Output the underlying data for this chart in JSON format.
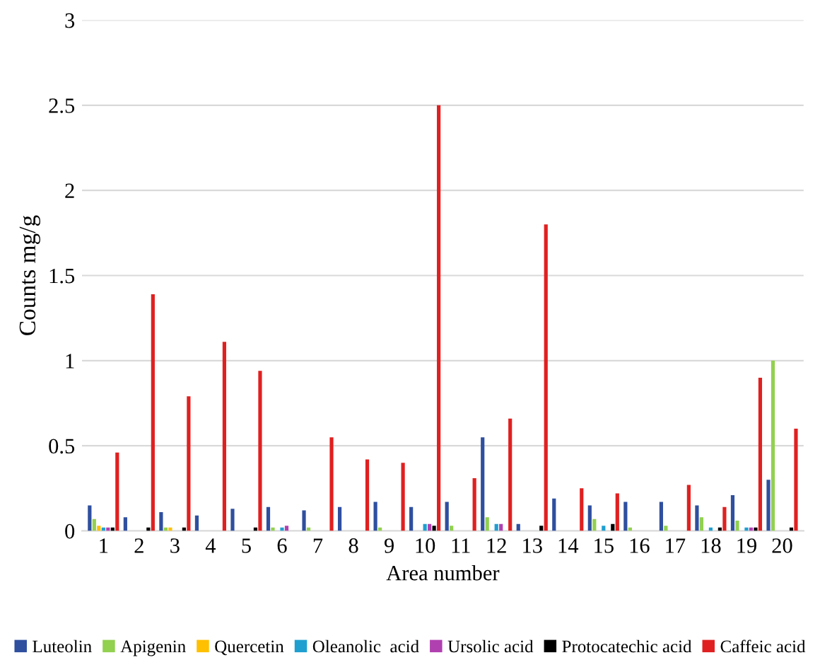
{
  "chart_data": {
    "type": "bar",
    "xlabel": "Area number",
    "ylabel": "Counts mg/g",
    "categories": [
      "1",
      "2",
      "3",
      "4",
      "5",
      "6",
      "7",
      "8",
      "9",
      "10",
      "11",
      "12",
      "13",
      "14",
      "15",
      "16",
      "17",
      "18",
      "19",
      "20"
    ],
    "series": [
      {
        "name": "Luteolin",
        "color": "#2f4f9f",
        "values": [
          0.15,
          0.08,
          0.11,
          0.09,
          0.13,
          0.14,
          0.12,
          0.14,
          0.17,
          0.14,
          0.17,
          0.55,
          0.04,
          0.19,
          0.15,
          0.17,
          0.17,
          0.15,
          0.21,
          0.3
        ]
      },
      {
        "name": "Apigenin",
        "color": "#92d050",
        "values": [
          0.07,
          0,
          0.02,
          0,
          0,
          0.02,
          0.02,
          0,
          0.02,
          0,
          0.03,
          0.08,
          0,
          0,
          0.07,
          0.02,
          0.03,
          0.08,
          0.06,
          1.0
        ]
      },
      {
        "name": "Quercetin",
        "color": "#ffc000",
        "values": [
          0.03,
          0,
          0.02,
          0,
          0,
          0,
          0,
          0,
          0,
          0,
          0,
          0,
          0,
          0,
          0,
          0,
          0,
          0,
          0,
          0
        ]
      },
      {
        "name": "Oleanolic  acid",
        "color": "#1f9fd0",
        "values": [
          0.02,
          0,
          0,
          0,
          0,
          0.02,
          0,
          0,
          0,
          0.04,
          0,
          0.04,
          0,
          0,
          0.03,
          0,
          0,
          0.02,
          0.02,
          0
        ]
      },
      {
        "name": "Ursolic acid",
        "color": "#b040b0",
        "values": [
          0.02,
          0,
          0,
          0,
          0,
          0.03,
          0,
          0,
          0,
          0.04,
          0,
          0.04,
          0,
          0,
          0,
          0,
          0,
          0,
          0.02,
          0
        ]
      },
      {
        "name": "Protocatechic acid",
        "color": "#000000",
        "values": [
          0.02,
          0.02,
          0.02,
          0,
          0.02,
          0,
          0,
          0,
          0,
          0.03,
          0,
          0,
          0.03,
          0,
          0.04,
          0,
          0,
          0.02,
          0.02,
          0.02
        ]
      },
      {
        "name": "Caffeic acid",
        "color": "#e02020",
        "values": [
          0.46,
          1.39,
          0.79,
          1.11,
          0.94,
          0,
          0.55,
          0.42,
          0.4,
          2.5,
          0.31,
          0.66,
          1.8,
          0.25,
          0.22,
          0,
          0.27,
          0.14,
          0.9,
          0.6
        ]
      }
    ],
    "ylim": [
      0,
      3
    ],
    "yticks": [
      0,
      0.5,
      1,
      1.5,
      2,
      2.5,
      3
    ],
    "grid": "y",
    "legend": "bottom"
  }
}
